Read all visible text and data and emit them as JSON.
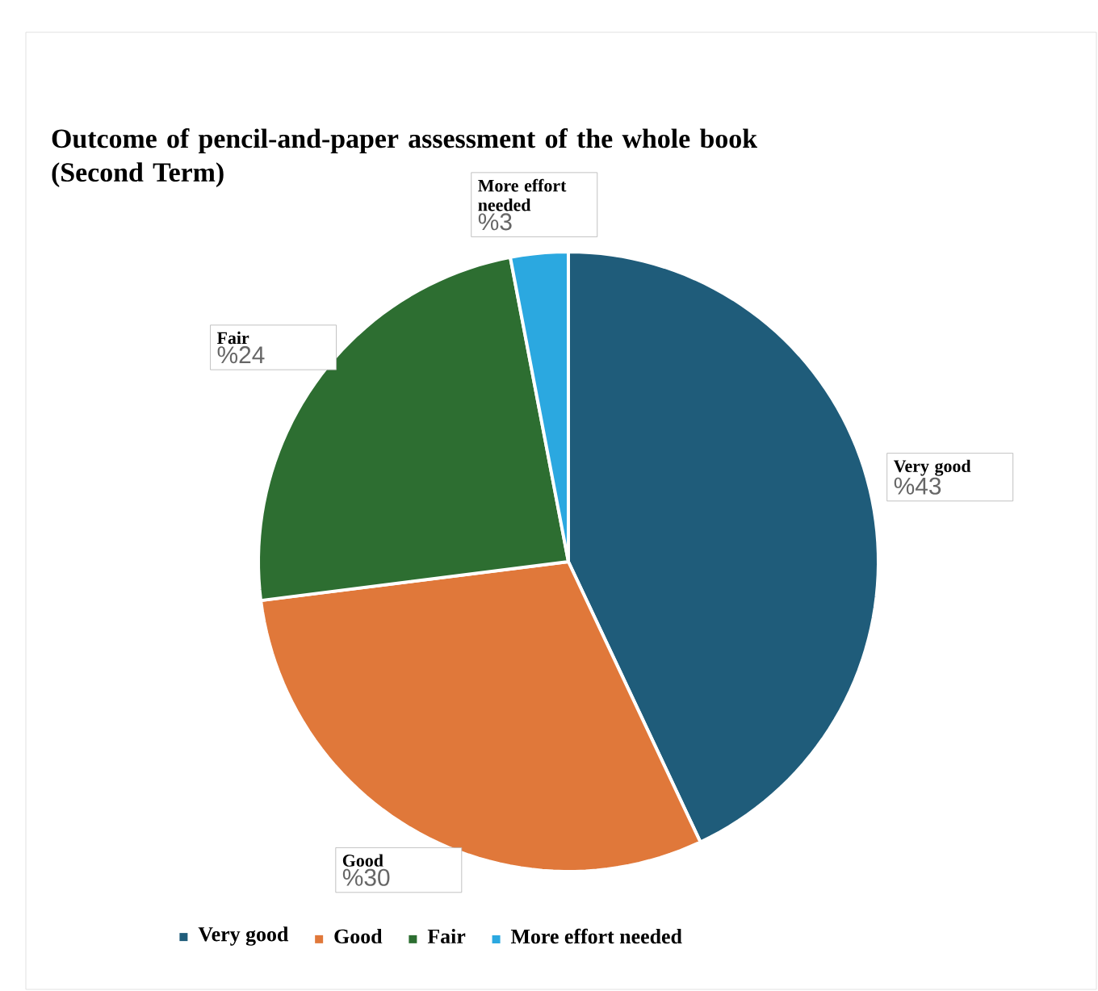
{
  "chart_data": {
    "type": "pie",
    "title": "Outcome of pencil-and-paper assessment of the whole book (Second Term)",
    "categories": [
      "Very good",
      "Good",
      "Fair",
      "More effort needed"
    ],
    "values": [
      43,
      30,
      24,
      3
    ],
    "value_labels": [
      "%43",
      "%30",
      "%24",
      "%3"
    ],
    "colors": [
      "#1f5c7a",
      "#e0783a",
      "#2d6e31",
      "#2ba8e0"
    ],
    "legend": "bottom"
  }
}
